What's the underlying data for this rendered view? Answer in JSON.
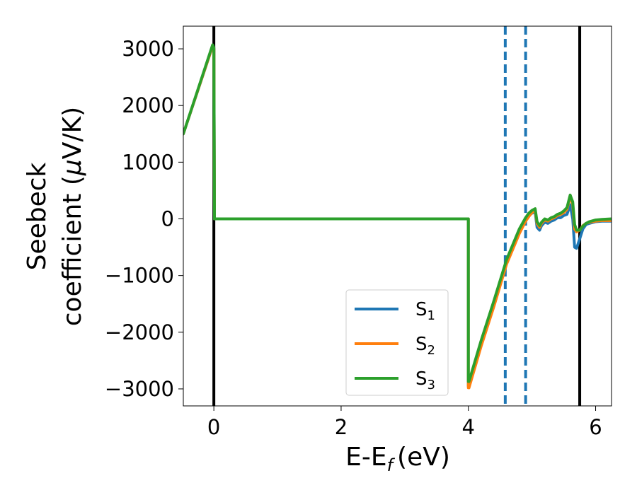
{
  "chart_data": {
    "type": "line",
    "xlabel": "E-E",
    "xlabel_sub": "f",
    "xlabel_unit": "(eV)",
    "ylabel_line1": "Seebeck",
    "ylabel_line2_a": "coefficient  (",
    "ylabel_line2_mu": "μ",
    "ylabel_line2_b": "V/K)",
    "xlim": [
      -0.48,
      6.25
    ],
    "ylim": [
      -3300,
      3400
    ],
    "x_ticks": [
      0,
      2,
      4,
      6
    ],
    "x_tick_labels": [
      "0",
      "2",
      "4",
      "6"
    ],
    "y_ticks": [
      3000,
      2000,
      1000,
      0,
      -1000,
      -2000,
      -3000
    ],
    "y_tick_labels": [
      "3000",
      "2000",
      "1000",
      "0",
      "−1000",
      "−2000",
      "−3000"
    ],
    "grid": false,
    "legend_position": "lower-center",
    "vertical_lines": [
      {
        "x": 0.0,
        "style": "solid",
        "color": "#000000"
      },
      {
        "x": 5.75,
        "style": "solid",
        "color": "#000000"
      },
      {
        "x": 4.58,
        "style": "dashed",
        "color": "#1f77b4"
      },
      {
        "x": 4.9,
        "style": "dashed",
        "color": "#1f77b4"
      }
    ],
    "series": [
      {
        "name": "S",
        "sub": "1",
        "color": "#1f77b4",
        "x": [
          -0.48,
          -0.02,
          0.0,
          0.01,
          4.0,
          4.0,
          4.01,
          4.2,
          4.4,
          4.6,
          4.8,
          4.9,
          4.95,
          5.0,
          5.05,
          5.08,
          5.12,
          5.15,
          5.2,
          5.25,
          5.3,
          5.35,
          5.4,
          5.45,
          5.5,
          5.55,
          5.6,
          5.64,
          5.67,
          5.7,
          5.75,
          5.8,
          5.85,
          5.9,
          6.0,
          6.1,
          6.25
        ],
        "y": [
          1500,
          3050,
          3000,
          0,
          0,
          -2950,
          -2950,
          -2200,
          -1500,
          -750,
          -220,
          0,
          60,
          100,
          120,
          -150,
          -200,
          -120,
          -60,
          -80,
          -40,
          -20,
          20,
          20,
          60,
          80,
          250,
          0,
          -500,
          -520,
          -350,
          -180,
          -100,
          -80,
          -50,
          -40,
          -40
        ]
      },
      {
        "name": "S",
        "sub": "2",
        "color": "#ff7f0e",
        "x": [
          -0.48,
          -0.02,
          0.0,
          0.01,
          4.0,
          4.0,
          4.01,
          4.2,
          4.4,
          4.6,
          4.8,
          4.9,
          4.95,
          5.0,
          5.05,
          5.08,
          5.12,
          5.15,
          5.2,
          5.25,
          5.3,
          5.35,
          5.4,
          5.45,
          5.5,
          5.55,
          5.6,
          5.64,
          5.67,
          5.7,
          5.75,
          5.8,
          5.85,
          5.9,
          6.0,
          6.1,
          6.25
        ],
        "y": [
          1500,
          3050,
          3000,
          0,
          0,
          -2980,
          -2980,
          -2250,
          -1550,
          -800,
          -260,
          -40,
          40,
          110,
          150,
          -80,
          -150,
          -80,
          -20,
          -40,
          0,
          20,
          60,
          80,
          110,
          170,
          400,
          250,
          -180,
          -230,
          -200,
          -120,
          -80,
          -60,
          -40,
          -30,
          -30
        ]
      },
      {
        "name": "S",
        "sub": "3",
        "color": "#2ca02c",
        "x": [
          -0.48,
          -0.02,
          0.0,
          0.01,
          4.0,
          4.0,
          4.01,
          4.2,
          4.4,
          4.6,
          4.8,
          4.9,
          4.95,
          5.0,
          5.05,
          5.08,
          5.12,
          5.15,
          5.2,
          5.25,
          5.3,
          5.35,
          5.4,
          5.45,
          5.5,
          5.55,
          5.6,
          5.64,
          5.67,
          5.7,
          5.75,
          5.8,
          5.85,
          5.9,
          6.0,
          6.1,
          6.25
        ],
        "y": [
          1500,
          3070,
          3020,
          0,
          0,
          -2870,
          -2870,
          -2150,
          -1450,
          -720,
          -180,
          20,
          100,
          150,
          180,
          -50,
          -120,
          -60,
          0,
          -20,
          20,
          40,
          80,
          100,
          140,
          200,
          420,
          300,
          -100,
          -200,
          -200,
          -130,
          -80,
          -50,
          -20,
          -10,
          0
        ]
      }
    ]
  }
}
